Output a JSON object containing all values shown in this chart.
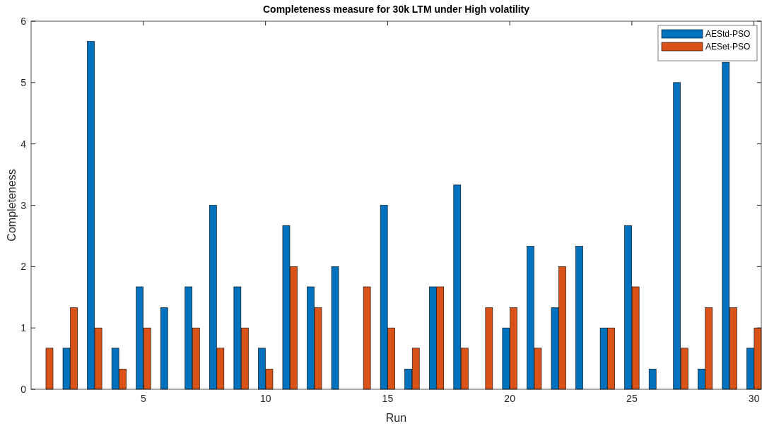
{
  "chart_data": {
    "type": "bar",
    "title": "Completeness measure for 30k LTM under High volatility",
    "xlabel": "Run",
    "ylabel": "Completeness",
    "x": [
      1,
      2,
      3,
      4,
      5,
      6,
      7,
      8,
      9,
      10,
      11,
      12,
      13,
      14,
      15,
      16,
      17,
      18,
      19,
      20,
      21,
      22,
      23,
      24,
      25,
      26,
      27,
      28,
      29,
      30
    ],
    "xlim": [
      0.4,
      30.3
    ],
    "xticks": [
      5,
      10,
      15,
      20,
      25,
      30
    ],
    "ylim": [
      0,
      6
    ],
    "yticks": [
      0,
      1,
      2,
      3,
      4,
      5,
      6
    ],
    "grid": false,
    "legend": "top right",
    "series": [
      {
        "name": "AEStd-PSO",
        "color": "#0072bd",
        "values": [
          0,
          0.67,
          5.67,
          0.67,
          1.67,
          1.33,
          1.67,
          3,
          1.67,
          0.67,
          2.67,
          1.67,
          2,
          0,
          3,
          0.33,
          1.67,
          3.33,
          0,
          1,
          2.33,
          1.33,
          2.33,
          1,
          2.67,
          0.33,
          5,
          0.33,
          5.33,
          0.67
        ]
      },
      {
        "name": "AESet-PSO",
        "color": "#d95319",
        "values": [
          0.67,
          1.33,
          1,
          0.33,
          1,
          0,
          1,
          0.67,
          1,
          0.33,
          2,
          1.33,
          0,
          1.67,
          1,
          0.67,
          1.67,
          0.67,
          1.33,
          1.33,
          0.67,
          2,
          0,
          1,
          1.67,
          0,
          0.67,
          1.33,
          1.33,
          1
        ]
      }
    ]
  }
}
